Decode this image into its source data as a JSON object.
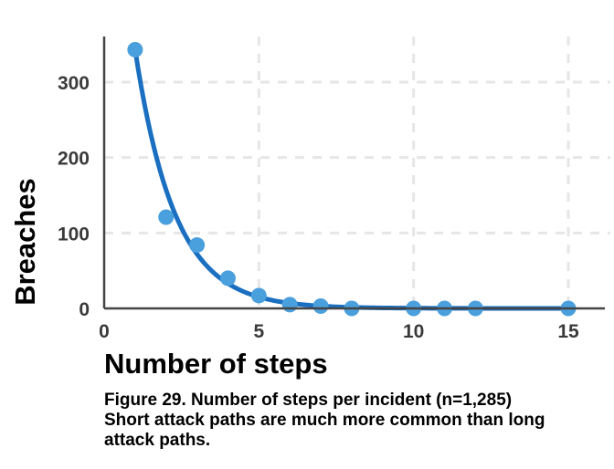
{
  "chart_data": {
    "type": "scatter",
    "xlabel": "Number of steps",
    "ylabel": "Breaches",
    "xlim": [
      0,
      15
    ],
    "ylim": [
      0,
      360
    ],
    "x_ticks": [
      0,
      5,
      10,
      15
    ],
    "y_ticks": [
      0,
      100,
      200,
      300
    ],
    "grid": true,
    "points": [
      {
        "x": 1,
        "y": 343
      },
      {
        "x": 2,
        "y": 121
      },
      {
        "x": 3,
        "y": 84
      },
      {
        "x": 4,
        "y": 40
      },
      {
        "x": 5,
        "y": 17
      },
      {
        "x": 6,
        "y": 5
      },
      {
        "x": 7,
        "y": 3
      },
      {
        "x": 8,
        "y": 0
      },
      {
        "x": 10,
        "y": 0
      },
      {
        "x": 11,
        "y": 0
      },
      {
        "x": 12,
        "y": 0
      },
      {
        "x": 15,
        "y": 0
      }
    ],
    "fit_line": {
      "type": "exponential",
      "a": 343,
      "b": 0.78,
      "x0": 1,
      "x_range": [
        1,
        15
      ]
    },
    "colors": {
      "points": "#4a9fdd",
      "fit_line": "#1a6fc0",
      "grid": "#e6e6e6",
      "axis": "#444444"
    }
  },
  "caption": {
    "line1": "Figure 29. Number of steps per incident (n=1,285)",
    "line2": "Short attack paths are much more common than long",
    "line3": "attack paths."
  }
}
